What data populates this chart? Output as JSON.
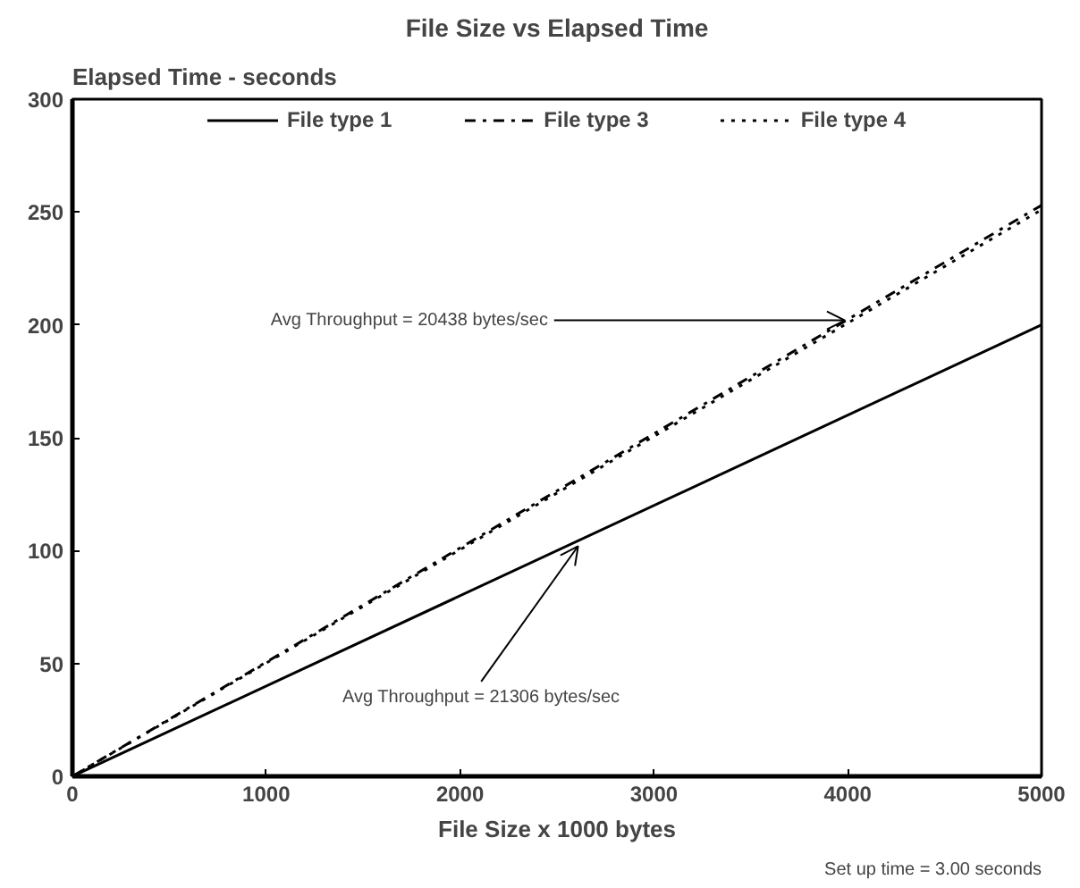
{
  "chart_data": {
    "type": "line",
    "title": "File Size vs Elapsed Time",
    "xlabel": "File Size x 1000 bytes",
    "ylabel": "Elapsed Time - seconds",
    "x": [
      0,
      5000
    ],
    "series": [
      {
        "name": "File type 1",
        "color": "#000000",
        "line_style": "solid",
        "values": [
          0,
          200
        ]
      },
      {
        "name": "File type 3",
        "color": "#000000",
        "line_style": "dashdot",
        "values": [
          0,
          253
        ]
      },
      {
        "name": "File type 4",
        "color": "#000000",
        "line_style": "dotted",
        "values": [
          0,
          251
        ]
      }
    ],
    "xlim": [
      0,
      5000
    ],
    "ylim": [
      0,
      300
    ],
    "xticks": [
      0,
      1000,
      2000,
      3000,
      4000,
      5000
    ],
    "yticks": [
      0,
      50,
      100,
      150,
      200,
      250,
      300
    ],
    "grid": false,
    "legend": "top",
    "marker": "none",
    "annotations": [
      {
        "text": "Avg Throughput = 20438 bytes/sec",
        "x": 3985,
        "y": 202
      },
      {
        "text": "Avg Throughput = 21306 bytes/sec",
        "x": 2609,
        "y": 102
      },
      "Set up time = 3.00 seconds"
    ]
  }
}
